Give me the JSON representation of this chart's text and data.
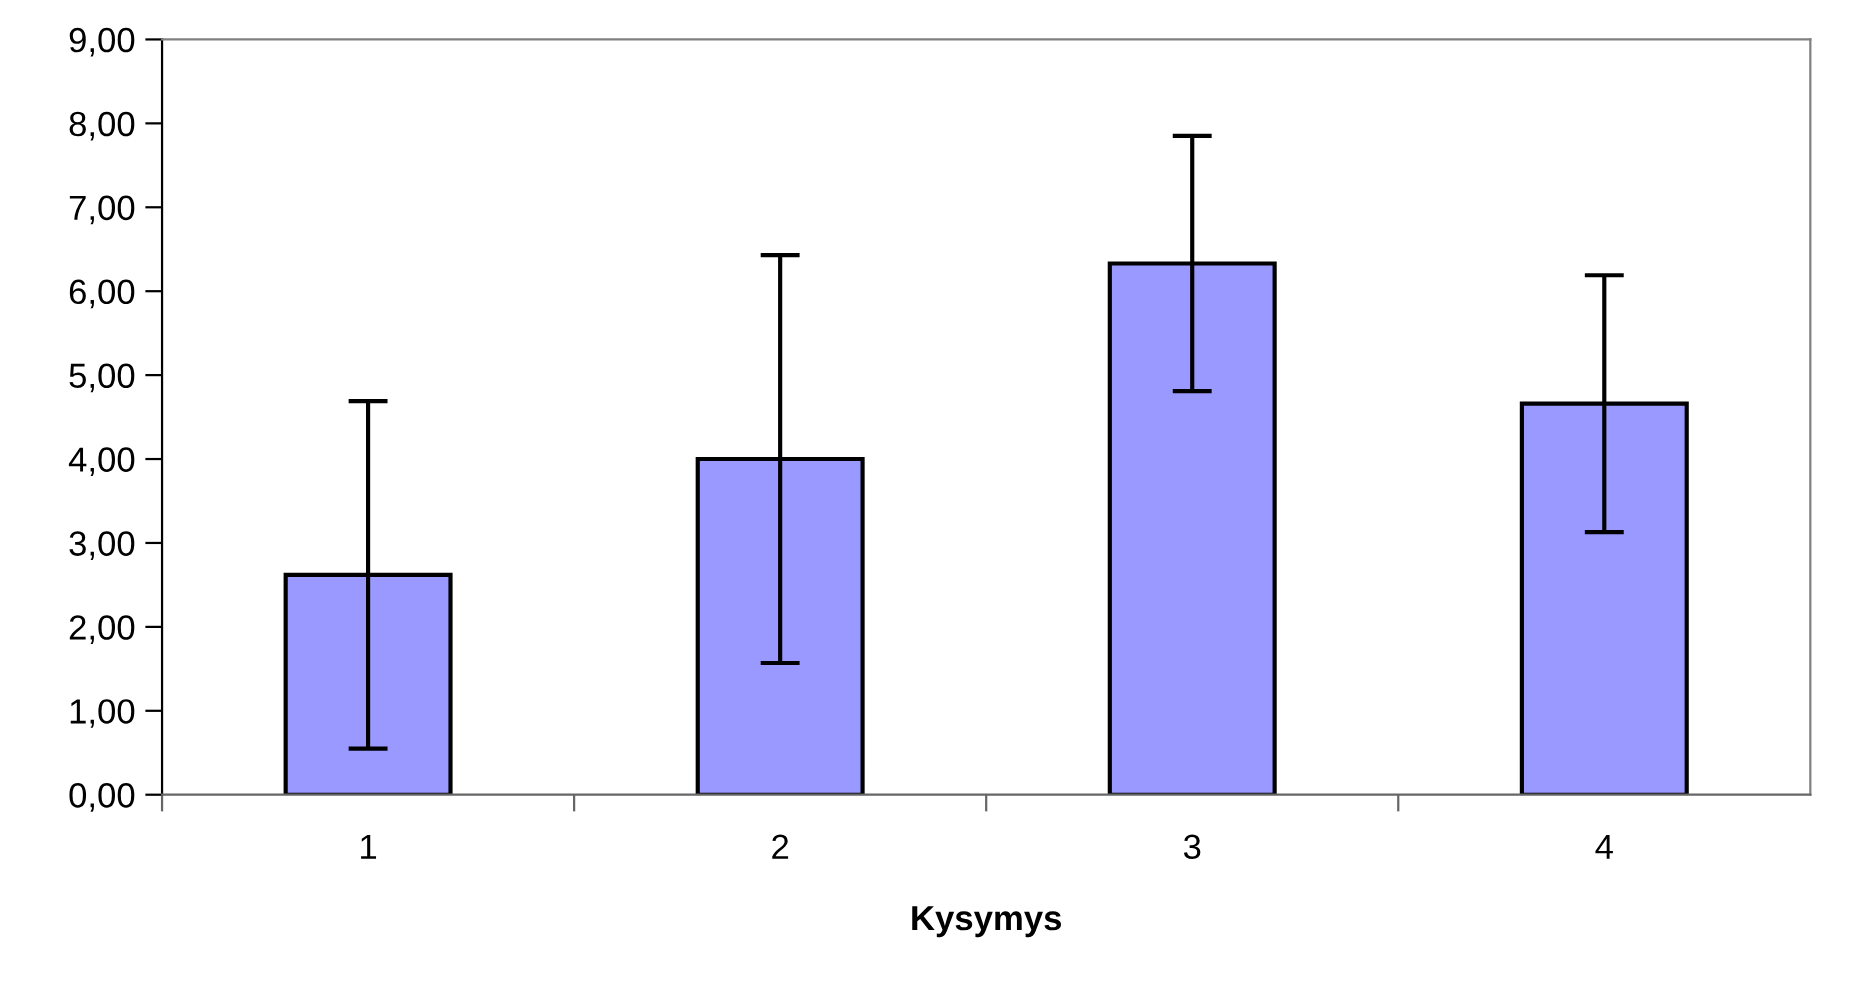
{
  "chart_data": {
    "type": "bar",
    "xlabel": "Kysymys",
    "categories": [
      "1",
      "2",
      "3",
      "4"
    ],
    "values": [
      2.62,
      4.0,
      6.33,
      4.66
    ],
    "errors": [
      2.07,
      2.43,
      1.52,
      1.53
    ],
    "color": "#9999ff",
    "ylim": [
      0,
      9
    ],
    "yticks": [
      {
        "value": 0,
        "label": "0,00"
      },
      {
        "value": 1,
        "label": "1,00"
      },
      {
        "value": 2,
        "label": "2,00"
      },
      {
        "value": 3,
        "label": "3,00"
      },
      {
        "value": 4,
        "label": "4,00"
      },
      {
        "value": 5,
        "label": "5,00"
      },
      {
        "value": 6,
        "label": "6,00"
      },
      {
        "value": 7,
        "label": "7,00"
      },
      {
        "value": 8,
        "label": "8,00"
      },
      {
        "value": 9,
        "label": "9,00"
      }
    ],
    "grid": false,
    "legend": false
  }
}
